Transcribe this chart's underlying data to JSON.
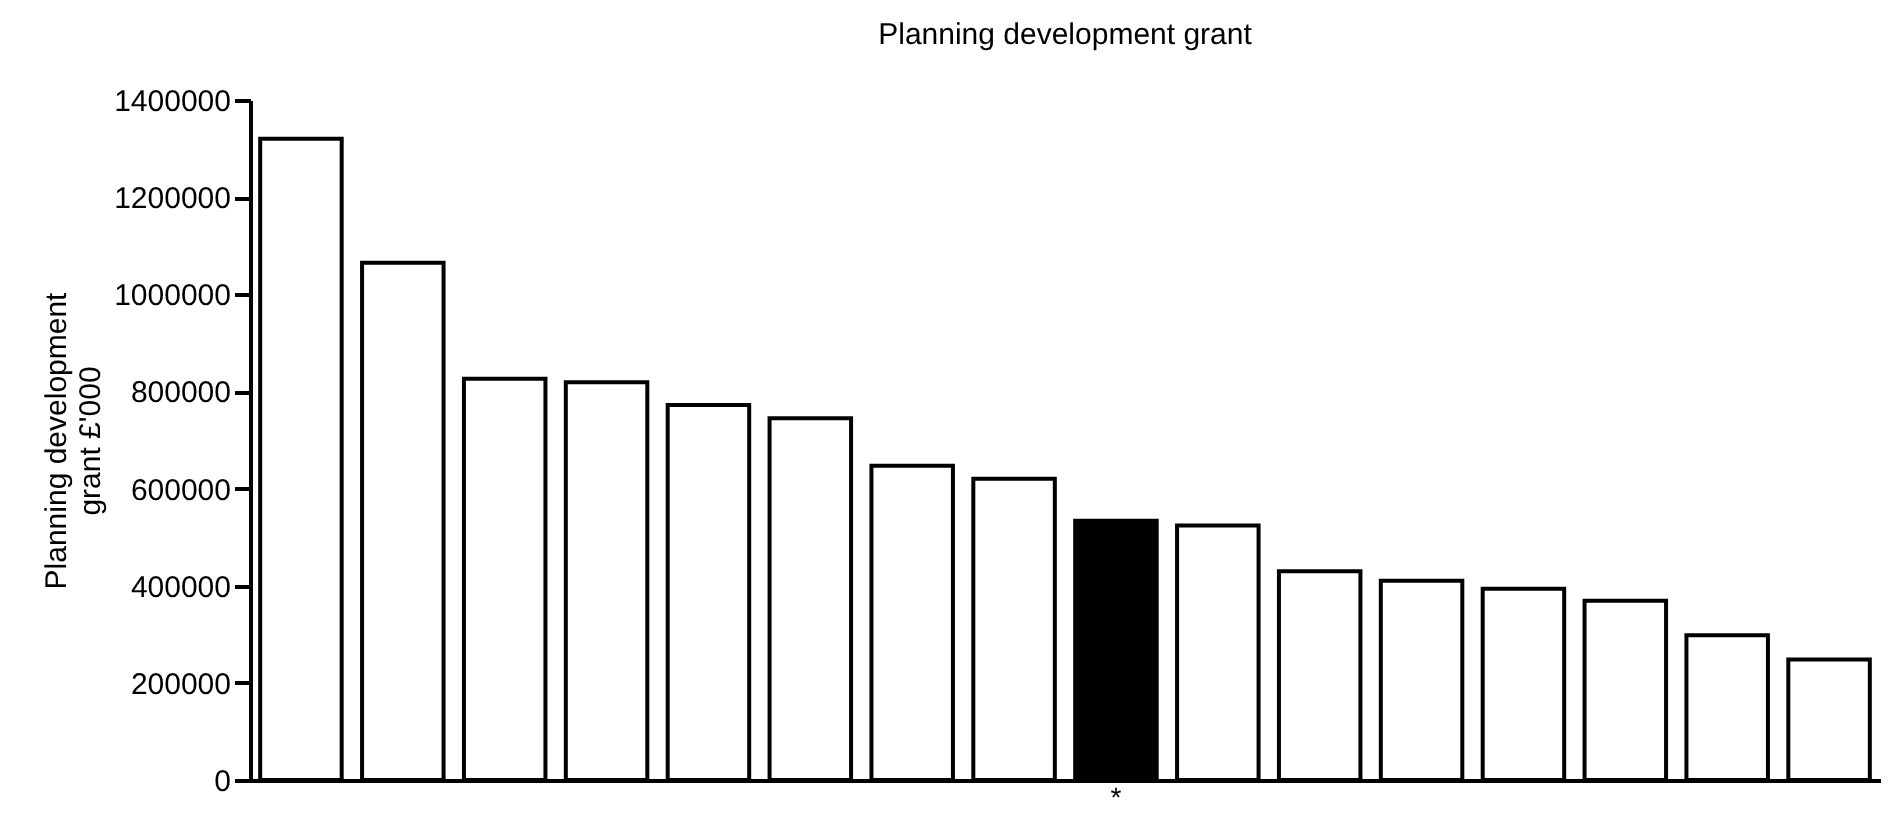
{
  "chart_data": {
    "type": "bar",
    "title": "Planning development grant",
    "ylabel": "Planning development grant £'000",
    "categories": [
      null,
      null,
      null,
      null,
      null,
      null,
      null,
      null,
      "*",
      null,
      null,
      null,
      null,
      null,
      null,
      null
    ],
    "values": [
      1320000,
      1065000,
      826000,
      819000,
      772000,
      745000,
      647000,
      620000,
      534000,
      524000,
      430000,
      410000,
      394000,
      369000,
      298000,
      248000
    ],
    "colors": [
      "#ffffff",
      "#ffffff",
      "#ffffff",
      "#ffffff",
      "#ffffff",
      "#ffffff",
      "#ffffff",
      "#ffffff",
      "#000000",
      "#ffffff",
      "#ffffff",
      "#ffffff",
      "#ffffff",
      "#ffffff",
      "#ffffff",
      "#ffffff"
    ],
    "ylim": [
      0,
      1400000
    ],
    "yticks": [
      0,
      200000,
      400000,
      600000,
      800000,
      1000000,
      1200000,
      1400000
    ],
    "grid": false
  }
}
